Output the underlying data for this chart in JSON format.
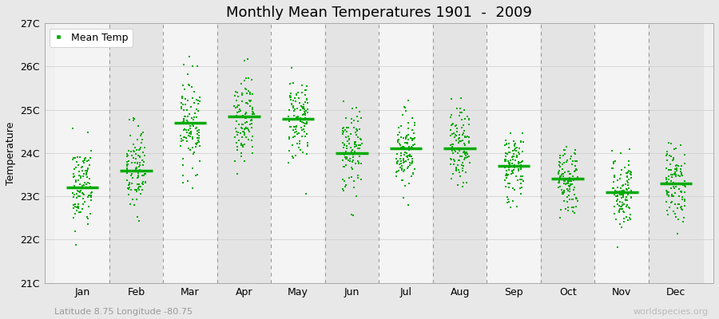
{
  "title": "Monthly Mean Temperatures 1901  -  2009",
  "ylabel": "Temperature",
  "subtitle": "Latitude 8.75 Longitude -80.75",
  "watermark": "worldspecies.org",
  "ylim": [
    21,
    27
  ],
  "yticks": [
    21,
    22,
    23,
    24,
    25,
    26,
    27
  ],
  "ytick_labels": [
    "21C",
    "22C",
    "23C",
    "24C",
    "25C",
    "26C",
    "27C"
  ],
  "months": [
    "Jan",
    "Feb",
    "Mar",
    "Apr",
    "May",
    "Jun",
    "Jul",
    "Aug",
    "Sep",
    "Oct",
    "Nov",
    "Dec"
  ],
  "n_years": 109,
  "seed": 42,
  "monthly_means": [
    23.2,
    23.6,
    24.7,
    24.85,
    24.8,
    24.0,
    24.1,
    24.1,
    23.7,
    23.4,
    23.1,
    23.3
  ],
  "monthly_stds": [
    0.5,
    0.55,
    0.55,
    0.5,
    0.5,
    0.5,
    0.45,
    0.45,
    0.42,
    0.42,
    0.45,
    0.45
  ],
  "dot_color": "#00aa00",
  "dot_size": 2,
  "legend_label": "Mean Temp",
  "fig_bg_color": "#e8e8e8",
  "plot_bg_color": "#f0f0f0",
  "band_light": "#f4f4f4",
  "band_dark": "#e4e4e4",
  "grid_color": "#cccccc",
  "dashed_color": "#999999",
  "mean_line_color": "#00aa00",
  "title_fontsize": 13,
  "axis_label_fontsize": 9,
  "tick_fontsize": 9,
  "legend_fontsize": 9,
  "subtitle_fontsize": 8,
  "watermark_fontsize": 8
}
